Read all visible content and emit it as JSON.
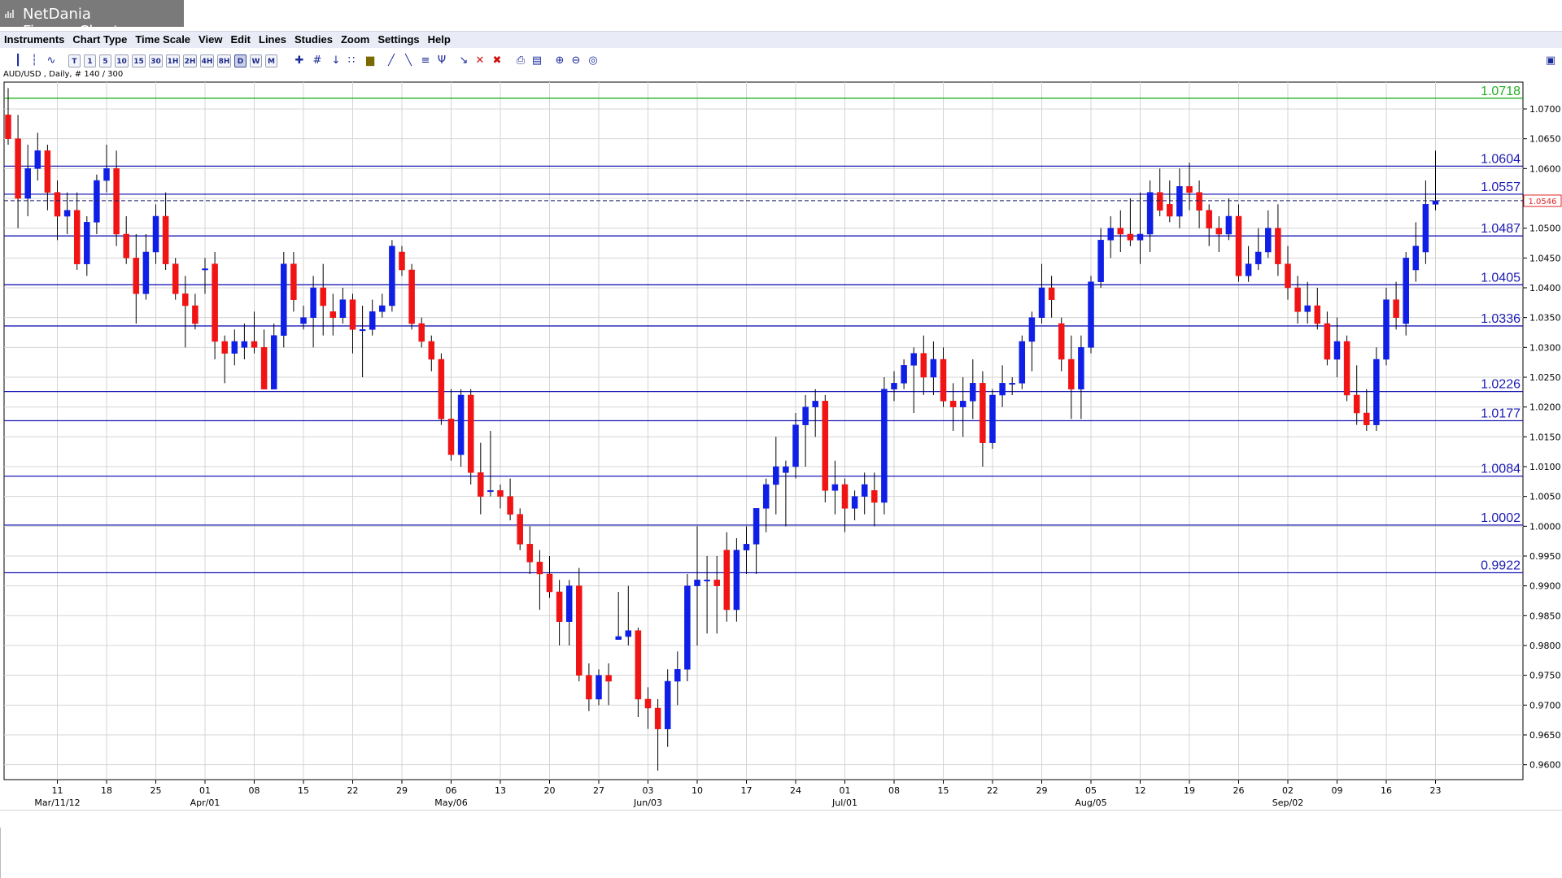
{
  "window": {
    "title": "NetDania FinanceChart",
    "icon": "bar-chart-icon"
  },
  "menu": [
    "Instruments",
    "Chart Type",
    "Time Scale",
    "View",
    "Edit",
    "Lines",
    "Studies",
    "Zoom",
    "Settings",
    "Help"
  ],
  "toolbar": {
    "timescale_buttons": [
      "T",
      "1",
      "5",
      "10",
      "15",
      "30",
      "1H",
      "2H",
      "4H",
      "8H",
      "D",
      "W",
      "M"
    ],
    "selected_timescale": "D",
    "icons": [
      "candlestick-icon",
      "bar-icon",
      "line-icon",
      "crosshair-icon",
      "grid-icon",
      "arrow-down-icon",
      "dots-icon",
      "volume-icon",
      "trendline-icon",
      "channel-icon",
      "fibonacci-icon",
      "pitchfork-icon",
      "marker-icon",
      "delete-icon",
      "delete-all-icon",
      "print-icon",
      "preview-icon",
      "zoom-in-icon",
      "zoom-out-icon",
      "zoom-reset-icon",
      "dock-icon"
    ]
  },
  "instrument_info": "AUD/USD , Daily, # 140 / 300",
  "colors": {
    "up": "#0f1fe6",
    "down": "#f01414",
    "level_line": "#1a1ab5",
    "top_line": "#22b022",
    "current_price": "#e02020",
    "grid": "#d4d4d4"
  },
  "chart_data": {
    "type": "candlestick",
    "instrument": "AUD/USD",
    "timeframe": "Daily",
    "ylim": [
      0.9575,
      1.0745
    ],
    "yticks": [
      "0.9600",
      "0.9650",
      "0.9700",
      "0.9750",
      "0.9800",
      "0.9850",
      "0.9900",
      "0.9950",
      "1.0000",
      "1.0050",
      "1.0100",
      "1.0150",
      "1.0200",
      "1.0250",
      "1.0300",
      "1.0350",
      "1.0400",
      "1.0450",
      "1.0500",
      "1.0550",
      "1.0600",
      "1.0650",
      "1.0700"
    ],
    "xticks": [
      "11",
      "18",
      "25",
      "01",
      "08",
      "15",
      "22",
      "29",
      "06",
      "13",
      "20",
      "27",
      "03",
      "10",
      "17",
      "24",
      "01",
      "08",
      "15",
      "22",
      "29",
      "05",
      "12",
      "19",
      "26",
      "02",
      "09",
      "16",
      "23"
    ],
    "xtick_start_index": 5,
    "xtick_step": 5,
    "month_labels": [
      {
        "label": "Mar/11/12",
        "tick": 0
      },
      {
        "label": "Apr/01",
        "tick": 3
      },
      {
        "label": "May/06",
        "tick": 8
      },
      {
        "label": "Jun/03",
        "tick": 12
      },
      {
        "label": "Jul/01",
        "tick": 16
      },
      {
        "label": "Aug/05",
        "tick": 21
      },
      {
        "label": "Sep/02",
        "tick": 25
      }
    ],
    "current_price": "1.0546",
    "current_price_value": 1.0546,
    "levels": [
      {
        "label": "1.0718",
        "value": 1.0718,
        "color": "top"
      },
      {
        "label": "1.0604",
        "value": 1.0604,
        "color": "level"
      },
      {
        "label": "1.0557",
        "value": 1.0557,
        "color": "level"
      },
      {
        "label": "1.0487",
        "value": 1.0487,
        "color": "level"
      },
      {
        "label": "1.0405",
        "value": 1.0405,
        "color": "level"
      },
      {
        "label": "1.0336",
        "value": 1.0336,
        "color": "level"
      },
      {
        "label": "1.0226",
        "value": 1.0226,
        "color": "level"
      },
      {
        "label": "1.0177",
        "value": 1.0177,
        "color": "level"
      },
      {
        "label": "1.0084",
        "value": 1.0084,
        "color": "level"
      },
      {
        "label": "1.0002",
        "value": 1.0002,
        "color": "level"
      },
      {
        "label": "0.9922",
        "value": 0.9922,
        "color": "level"
      }
    ],
    "candles": [
      [
        1.069,
        1.0735,
        1.064,
        1.065
      ],
      [
        1.065,
        1.069,
        1.05,
        1.055
      ],
      [
        1.055,
        1.064,
        1.052,
        1.06
      ],
      [
        1.06,
        1.066,
        1.058,
        1.063
      ],
      [
        1.063,
        1.064,
        1.053,
        1.056
      ],
      [
        1.056,
        1.058,
        1.048,
        1.052
      ],
      [
        1.052,
        1.056,
        1.049,
        1.053
      ],
      [
        1.053,
        1.056,
        1.043,
        1.044
      ],
      [
        1.044,
        1.052,
        1.042,
        1.051
      ],
      [
        1.051,
        1.059,
        1.049,
        1.058
      ],
      [
        1.058,
        1.064,
        1.056,
        1.06
      ],
      [
        1.06,
        1.063,
        1.047,
        1.049
      ],
      [
        1.049,
        1.052,
        1.044,
        1.045
      ],
      [
        1.045,
        1.049,
        1.034,
        1.039
      ],
      [
        1.039,
        1.049,
        1.038,
        1.046
      ],
      [
        1.046,
        1.054,
        1.044,
        1.052
      ],
      [
        1.052,
        1.056,
        1.043,
        1.044
      ],
      [
        1.044,
        1.045,
        1.038,
        1.039
      ],
      [
        1.039,
        1.042,
        1.03,
        1.037
      ],
      [
        1.037,
        1.039,
        1.033,
        1.034
      ],
      [
        1.043,
        1.045,
        1.039,
        1.0432
      ],
      [
        1.044,
        1.046,
        1.028,
        1.031
      ],
      [
        1.031,
        1.032,
        1.024,
        1.029
      ],
      [
        1.029,
        1.033,
        1.027,
        1.031
      ],
      [
        1.03,
        1.034,
        1.028,
        1.031
      ],
      [
        1.031,
        1.036,
        1.029,
        1.03
      ],
      [
        1.03,
        1.033,
        1.023,
        1.023
      ],
      [
        1.023,
        1.034,
        1.023,
        1.032
      ],
      [
        1.032,
        1.046,
        1.03,
        1.044
      ],
      [
        1.044,
        1.046,
        1.036,
        1.038
      ],
      [
        1.034,
        1.037,
        1.033,
        1.035
      ],
      [
        1.035,
        1.042,
        1.03,
        1.04
      ],
      [
        1.04,
        1.044,
        1.032,
        1.037
      ],
      [
        1.036,
        1.039,
        1.032,
        1.035
      ],
      [
        1.035,
        1.04,
        1.034,
        1.038
      ],
      [
        1.038,
        1.039,
        1.029,
        1.033
      ],
      [
        1.033,
        1.037,
        1.025,
        1.033
      ],
      [
        1.033,
        1.038,
        1.032,
        1.036
      ],
      [
        1.036,
        1.039,
        1.035,
        1.037
      ],
      [
        1.037,
        1.048,
        1.036,
        1.047
      ],
      [
        1.046,
        1.047,
        1.042,
        1.043
      ],
      [
        1.043,
        1.044,
        1.033,
        1.034
      ],
      [
        1.034,
        1.035,
        1.03,
        1.031
      ],
      [
        1.031,
        1.032,
        1.026,
        1.028
      ],
      [
        1.028,
        1.029,
        1.017,
        1.018
      ],
      [
        1.018,
        1.023,
        1.011,
        1.012
      ],
      [
        1.012,
        1.023,
        1.01,
        1.022
      ],
      [
        1.022,
        1.023,
        1.007,
        1.009
      ],
      [
        1.009,
        1.014,
        1.002,
        1.005
      ],
      [
        1.006,
        1.016,
        1.005,
        1.006
      ],
      [
        1.006,
        1.007,
        1.003,
        1.005
      ],
      [
        1.005,
        1.008,
        1.001,
        1.002
      ],
      [
        1.002,
        1.003,
        0.996,
        0.997
      ],
      [
        0.997,
        1.0,
        0.992,
        0.994
      ],
      [
        0.994,
        0.996,
        0.986,
        0.992
      ],
      [
        0.992,
        0.995,
        0.988,
        0.989
      ],
      [
        0.989,
        0.991,
        0.98,
        0.984
      ],
      [
        0.984,
        0.991,
        0.98,
        0.99
      ],
      [
        0.99,
        0.993,
        0.974,
        0.975
      ],
      [
        0.975,
        0.977,
        0.969,
        0.971
      ],
      [
        0.971,
        0.976,
        0.97,
        0.975
      ],
      [
        0.975,
        0.977,
        0.97,
        0.974
      ],
      [
        0.981,
        0.989,
        0.981,
        0.9815
      ],
      [
        0.9815,
        0.99,
        0.98,
        0.9825
      ],
      [
        0.9825,
        0.983,
        0.968,
        0.971
      ],
      [
        0.971,
        0.973,
        0.966,
        0.9695
      ],
      [
        0.9695,
        0.971,
        0.959,
        0.966
      ],
      [
        0.966,
        0.976,
        0.963,
        0.974
      ],
      [
        0.974,
        0.979,
        0.97,
        0.976
      ],
      [
        0.976,
        0.992,
        0.974,
        0.99
      ],
      [
        0.99,
        1.0,
        0.98,
        0.991
      ],
      [
        0.991,
        0.995,
        0.982,
        0.991
      ],
      [
        0.991,
        0.995,
        0.982,
        0.99
      ],
      [
        0.996,
        0.999,
        0.984,
        0.986
      ],
      [
        0.986,
        0.998,
        0.984,
        0.996
      ],
      [
        0.996,
        1.0,
        0.992,
        0.997
      ],
      [
        0.997,
        1.002,
        0.992,
        1.003
      ],
      [
        1.003,
        1.008,
        0.999,
        1.007
      ],
      [
        1.007,
        1.015,
        1.002,
        1.01
      ],
      [
        1.009,
        1.011,
        1.0,
        1.01
      ],
      [
        1.01,
        1.019,
        1.008,
        1.017
      ],
      [
        1.017,
        1.022,
        1.01,
        1.02
      ],
      [
        1.02,
        1.023,
        1.015,
        1.021
      ],
      [
        1.021,
        1.022,
        1.004,
        1.006
      ],
      [
        1.006,
        1.011,
        1.002,
        1.007
      ],
      [
        1.007,
        1.008,
        0.999,
        1.003
      ],
      [
        1.003,
        1.006,
        1.001,
        1.005
      ],
      [
        1.005,
        1.009,
        1.002,
        1.007
      ],
      [
        1.006,
        1.009,
        1.0,
        1.004
      ],
      [
        1.004,
        1.025,
        1.002,
        1.023
      ],
      [
        1.023,
        1.026,
        1.021,
        1.024
      ],
      [
        1.024,
        1.028,
        1.023,
        1.027
      ],
      [
        1.027,
        1.03,
        1.019,
        1.029
      ],
      [
        1.029,
        1.032,
        1.022,
        1.025
      ],
      [
        1.025,
        1.031,
        1.022,
        1.028
      ],
      [
        1.028,
        1.03,
        1.02,
        1.021
      ],
      [
        1.021,
        1.024,
        1.016,
        1.02
      ],
      [
        1.02,
        1.025,
        1.015,
        1.021
      ],
      [
        1.021,
        1.028,
        1.018,
        1.024
      ],
      [
        1.024,
        1.026,
        1.01,
        1.014
      ],
      [
        1.014,
        1.023,
        1.013,
        1.022
      ],
      [
        1.022,
        1.027,
        1.02,
        1.024
      ],
      [
        1.024,
        1.025,
        1.022,
        1.024
      ],
      [
        1.024,
        1.032,
        1.023,
        1.031
      ],
      [
        1.031,
        1.036,
        1.026,
        1.035
      ],
      [
        1.035,
        1.044,
        1.034,
        1.04
      ],
      [
        1.04,
        1.042,
        1.035,
        1.038
      ],
      [
        1.034,
        1.035,
        1.026,
        1.028
      ],
      [
        1.028,
        1.032,
        1.018,
        1.023
      ],
      [
        1.023,
        1.032,
        1.018,
        1.03
      ],
      [
        1.03,
        1.042,
        1.029,
        1.041
      ],
      [
        1.041,
        1.05,
        1.04,
        1.048
      ],
      [
        1.048,
        1.052,
        1.045,
        1.05
      ],
      [
        1.05,
        1.053,
        1.046,
        1.049
      ],
      [
        1.049,
        1.055,
        1.047,
        1.048
      ],
      [
        1.048,
        1.056,
        1.044,
        1.049
      ],
      [
        1.049,
        1.058,
        1.046,
        1.056
      ],
      [
        1.056,
        1.06,
        1.052,
        1.053
      ],
      [
        1.054,
        1.058,
        1.051,
        1.052
      ],
      [
        1.052,
        1.06,
        1.05,
        1.057
      ],
      [
        1.057,
        1.061,
        1.053,
        1.056
      ],
      [
        1.056,
        1.058,
        1.05,
        1.053
      ],
      [
        1.053,
        1.054,
        1.047,
        1.05
      ],
      [
        1.05,
        1.052,
        1.046,
        1.049
      ],
      [
        1.049,
        1.055,
        1.048,
        1.052
      ],
      [
        1.052,
        1.054,
        1.041,
        1.042
      ],
      [
        1.042,
        1.047,
        1.041,
        1.044
      ],
      [
        1.044,
        1.05,
        1.043,
        1.046
      ],
      [
        1.046,
        1.053,
        1.045,
        1.05
      ],
      [
        1.05,
        1.054,
        1.042,
        1.044
      ],
      [
        1.044,
        1.047,
        1.038,
        1.04
      ],
      [
        1.04,
        1.042,
        1.034,
        1.036
      ],
      [
        1.036,
        1.041,
        1.034,
        1.037
      ],
      [
        1.037,
        1.04,
        1.033,
        1.034
      ],
      [
        1.034,
        1.036,
        1.027,
        1.028
      ],
      [
        1.028,
        1.035,
        1.025,
        1.031
      ],
      [
        1.031,
        1.032,
        1.021,
        1.022
      ],
      [
        1.022,
        1.027,
        1.017,
        1.019
      ],
      [
        1.019,
        1.023,
        1.016,
        1.017
      ],
      [
        1.017,
        1.03,
        1.016,
        1.028
      ],
      [
        1.028,
        1.04,
        1.027,
        1.038
      ],
      [
        1.038,
        1.041,
        1.033,
        1.035
      ],
      [
        1.034,
        1.046,
        1.032,
        1.045
      ],
      [
        1.043,
        1.051,
        1.041,
        1.047
      ],
      [
        1.046,
        1.058,
        1.044,
        1.054
      ],
      [
        1.054,
        1.063,
        1.053,
        1.0546
      ]
    ]
  }
}
